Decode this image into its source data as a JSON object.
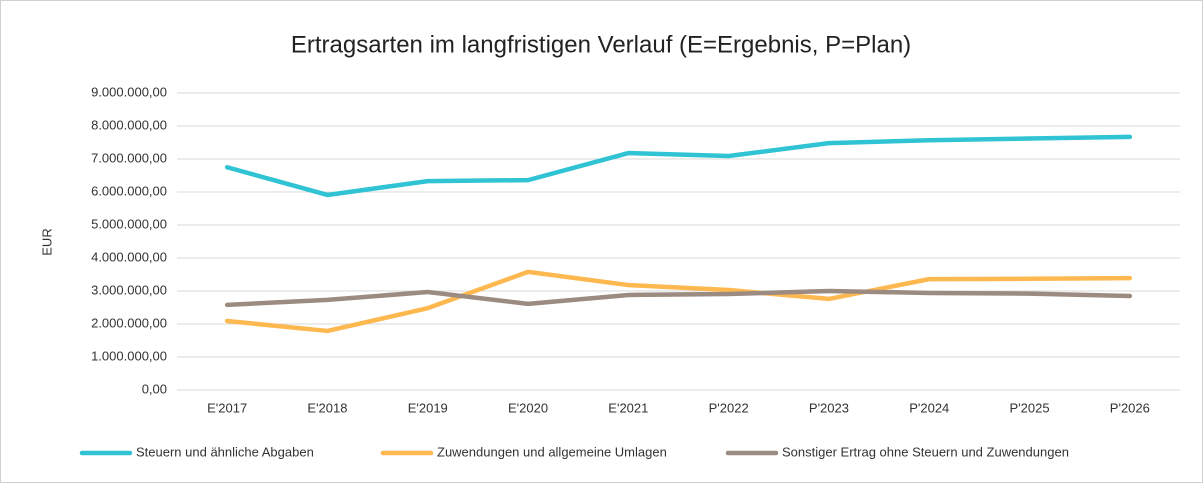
{
  "chart_data": {
    "type": "line",
    "title": "Ertragsarten im langfristigen Verlauf (E=Ergebnis, P=Plan)",
    "y_label": "EUR",
    "categories": [
      "E'2017",
      "E'2018",
      "E'2019",
      "E'2020",
      "E'2021",
      "P'2022",
      "P'2023",
      "P'2024",
      "P'2025",
      "P'2026"
    ],
    "series": [
      {
        "name": "Steuern und ähnliche Abgaben",
        "color": "#2fc3d4",
        "values": [
          6750000,
          5910000,
          6330000,
          6360000,
          7180000,
          7090000,
          7480000,
          7570000,
          7620000,
          7670000
        ]
      },
      {
        "name": "Zuwendungen und allgemeine Umlagen",
        "color": "#fdb84f",
        "values": [
          2090000,
          1790000,
          2480000,
          3580000,
          3180000,
          3030000,
          2760000,
          3360000,
          3370000,
          3390000
        ]
      },
      {
        "name": "Sonstiger Ertrag ohne Steuern und Zuwendungen",
        "color": "#9c8b80",
        "values": [
          2580000,
          2730000,
          2970000,
          2610000,
          2880000,
          2910000,
          3000000,
          2940000,
          2920000,
          2850000
        ]
      }
    ],
    "ylim": [
      0,
      9000000
    ],
    "yticks": [
      {
        "value": 0,
        "label": "0,00"
      },
      {
        "value": 1000000,
        "label": "1.000.000,00"
      },
      {
        "value": 2000000,
        "label": "2.000.000,00"
      },
      {
        "value": 3000000,
        "label": "3.000.000,00"
      },
      {
        "value": 4000000,
        "label": "4.000.000,00"
      },
      {
        "value": 5000000,
        "label": "5.000.000,00"
      },
      {
        "value": 6000000,
        "label": "6.000.000,00"
      },
      {
        "value": 7000000,
        "label": "7.000.000,00"
      },
      {
        "value": 8000000,
        "label": "8.000.000,00"
      },
      {
        "value": 9000000,
        "label": "9.000.000,00"
      }
    ],
    "grid": true,
    "legend": "bottom"
  }
}
